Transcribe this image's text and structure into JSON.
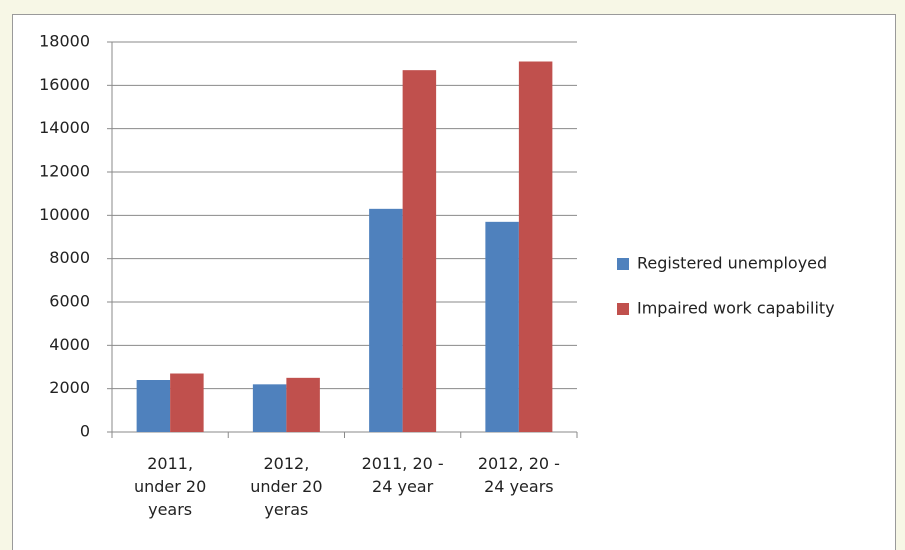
{
  "chart_data": {
    "type": "bar",
    "categories": [
      "2011, under 20 years",
      "2012, under 20 yeras",
      "2011, 20 - 24 year",
      "2012, 20 - 24 years"
    ],
    "series": [
      {
        "name": "Registered unemployed",
        "color": "#4f81bd",
        "values": [
          2400,
          2200,
          10300,
          9700
        ]
      },
      {
        "name": "Impaired work capability",
        "color": "#c0504d",
        "values": [
          2700,
          2500,
          16700,
          17100
        ]
      }
    ],
    "ylim": [
      0,
      18000
    ],
    "yticks": [
      0,
      2000,
      4000,
      6000,
      8000,
      10000,
      12000,
      14000,
      16000,
      18000
    ],
    "grid": true,
    "legend": "right"
  }
}
